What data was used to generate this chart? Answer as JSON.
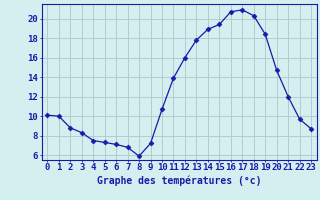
{
  "hours": [
    0,
    1,
    2,
    3,
    4,
    5,
    6,
    7,
    8,
    9,
    10,
    11,
    12,
    13,
    14,
    15,
    16,
    17,
    18,
    19,
    20,
    21,
    22,
    23
  ],
  "temperatures": [
    10.1,
    10.0,
    8.8,
    8.3,
    7.5,
    7.3,
    7.1,
    6.8,
    5.9,
    7.2,
    10.7,
    13.9,
    16.0,
    17.8,
    18.9,
    19.4,
    20.7,
    20.9,
    20.3,
    18.4,
    14.7,
    12.0,
    9.7,
    8.7
  ],
  "line_color": "#1a1aaa",
  "marker": "D",
  "marker_size": 2.5,
  "bg_color": "#d4efef",
  "grid_color": "#b0cccc",
  "axis_color": "#1a1aaa",
  "xlabel": "Graphe des températures (°c)",
  "xlabel_fontsize": 7,
  "ylabel_ticks": [
    6,
    8,
    10,
    12,
    14,
    16,
    18,
    20
  ],
  "ylim": [
    5.5,
    21.5
  ],
  "xlim": [
    -0.5,
    23.5
  ],
  "tick_fontsize": 6.5,
  "title": ""
}
